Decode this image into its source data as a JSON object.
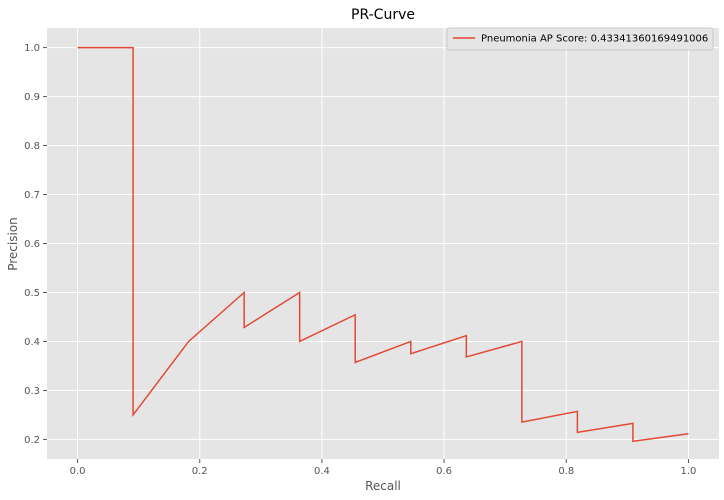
{
  "chart_data": {
    "type": "line",
    "title": "PR-Curve",
    "xlabel": "Recall",
    "ylabel": "Precision",
    "xlim": [
      -0.05,
      1.05
    ],
    "ylim": [
      0.16,
      1.04
    ],
    "xticks": [
      0.0,
      0.2,
      0.4,
      0.6,
      0.8,
      1.0
    ],
    "xtick_labels": [
      "0.0",
      "0.2",
      "0.4",
      "0.6",
      "0.8",
      "1.0"
    ],
    "yticks": [
      0.2,
      0.3,
      0.4,
      0.5,
      0.6,
      0.7,
      0.8,
      0.9,
      1.0
    ],
    "ytick_labels": [
      "0.2",
      "0.3",
      "0.4",
      "0.5",
      "0.6",
      "0.7",
      "0.8",
      "0.9",
      "1.0"
    ],
    "grid": true,
    "legend_position": "top-right",
    "background_color": "#e5e5e5",
    "grid_color": "#ffffff",
    "series": [
      {
        "name": "Pneumonia AP Score: 0.43341360169491006",
        "color": "#e24a33",
        "x": [
          0.0,
          0.0909,
          0.0909,
          0.1818,
          0.2727,
          0.2727,
          0.3636,
          0.3636,
          0.4545,
          0.4545,
          0.5455,
          0.5455,
          0.6364,
          0.6364,
          0.7273,
          0.7273,
          0.8182,
          0.8182,
          0.9091,
          0.9091,
          1.0
        ],
        "y": [
          1.0,
          1.0,
          0.25,
          0.4,
          0.5,
          0.4286,
          0.5,
          0.4,
          0.4545,
          0.3571,
          0.4,
          0.375,
          0.4118,
          0.3684,
          0.4,
          0.2353,
          0.2571,
          0.2143,
          0.2326,
          0.1961,
          0.2115
        ]
      }
    ]
  }
}
